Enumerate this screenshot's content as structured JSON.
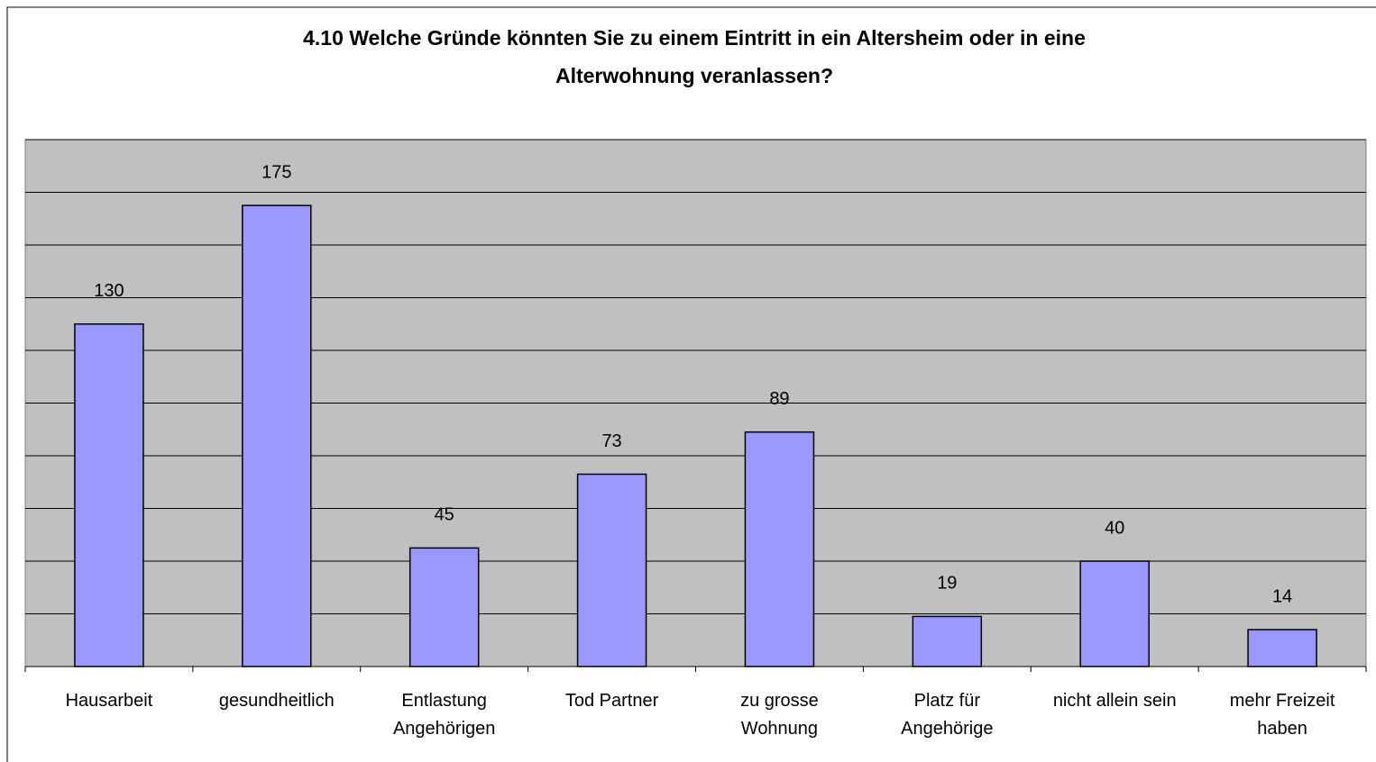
{
  "chart_data": {
    "type": "bar",
    "title": "4.10 Welche Gründe könnten Sie zu einem Eintritt in ein Altersheim oder in eine\nAlterwohnung veranlassen?",
    "categories": [
      "Hausarbeit",
      "gesundheitlich",
      "Entlastung\nAngehörigen",
      "Tod Partner",
      "zu grosse\nWohnung",
      "Platz für\nAngehörige",
      "nicht allein sein",
      "mehr Freizeit\nhaben"
    ],
    "values": [
      130,
      175,
      45,
      73,
      89,
      19,
      40,
      14
    ],
    "color": "#9999ff",
    "ylim": [
      0,
      200
    ],
    "yticks": [
      0,
      20,
      40,
      60,
      80,
      100,
      120,
      140,
      160,
      180,
      200
    ],
    "grid": true
  }
}
